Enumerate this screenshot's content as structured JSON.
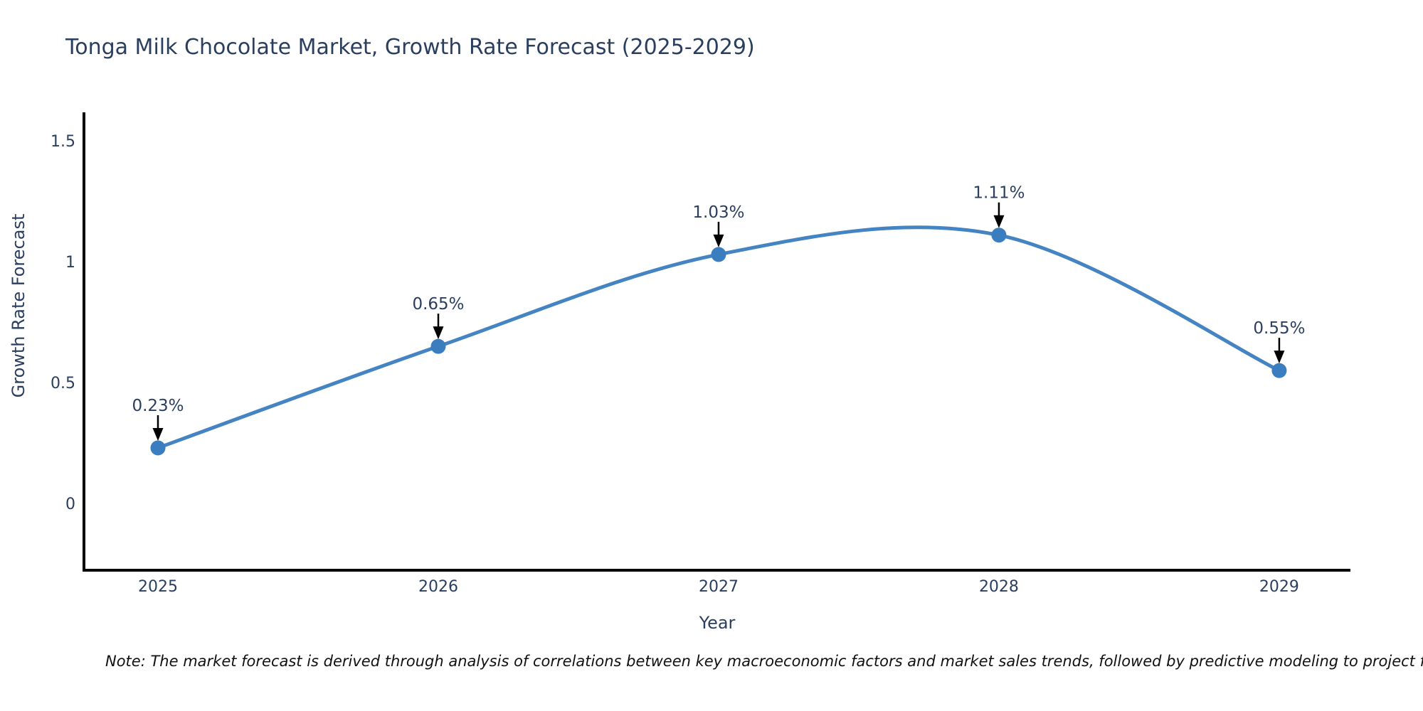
{
  "page": {
    "background": "#ffffff"
  },
  "chart_data": {
    "type": "line",
    "title": "Tonga Milk Chocolate Market, Growth Rate Forecast (2025-2029)",
    "xlabel": "Year",
    "ylabel": "Growth Rate Forecast",
    "x": [
      2025,
      2026,
      2027,
      2028,
      2029
    ],
    "values": [
      0.23,
      0.65,
      1.03,
      1.11,
      0.55
    ],
    "series": [
      {
        "name": "Growth Rate Forecast",
        "values": [
          0.23,
          0.65,
          1.03,
          1.11,
          0.55
        ]
      }
    ],
    "point_labels": [
      "0.23%",
      "0.65%",
      "1.03%",
      "1.11%",
      "0.55%"
    ],
    "x_tick_labels": [
      "2025",
      "2026",
      "2027",
      "2028",
      "2029"
    ],
    "y_ticks": [
      0,
      0.5,
      1,
      1.5
    ],
    "y_tick_labels": [
      "0",
      "0.5",
      "1",
      "1.5"
    ],
    "xlim": [
      2024.736,
      2029.254
    ],
    "ylim": [
      -0.276,
      1.618
    ],
    "grid": false,
    "legend": false,
    "line_shape": "spline",
    "marker": "circle",
    "annotation_arrows": true,
    "colors": {
      "line": "#4484c2",
      "marker": "#3a7ebf",
      "axis": "#000000",
      "text": "#2a3f5f",
      "arrow": "#000000",
      "note": "#111111"
    }
  },
  "note": {
    "text": "Note: The market forecast is derived through analysis of correlations between key macroeconomic factors and market sales trends, followed by predictive modeling to project future sales"
  }
}
